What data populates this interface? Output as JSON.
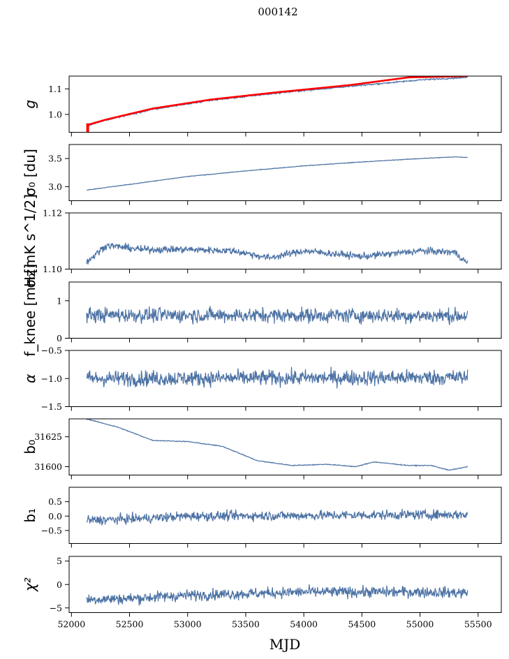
{
  "figure": {
    "title": "000142",
    "xlabel": "MJD"
  },
  "chart_data": {
    "type": "line",
    "xlim": [
      51980,
      55700
    ],
    "xticks": [
      52000,
      52500,
      53000,
      53500,
      54000,
      54500,
      55000,
      55500
    ],
    "x_start": 52130,
    "x_end": 55410,
    "series_color": "#4c72a4",
    "accent_color": "#ff0000",
    "panels": [
      {
        "key": "g",
        "ylabel_text": "g",
        "ylim": [
          0.93,
          1.15
        ],
        "yticks": [
          1.0,
          1.1
        ],
        "yticklabels": [
          "1.0",
          "1.1"
        ],
        "trend": [
          [
            52130,
            0.955
          ],
          [
            52300,
            0.978
          ],
          [
            52700,
            1.02
          ],
          [
            53200,
            1.055
          ],
          [
            53800,
            1.085
          ],
          [
            54400,
            1.11
          ],
          [
            55000,
            1.135
          ],
          [
            55410,
            1.145
          ]
        ],
        "noise": 0.002,
        "red_trend": [
          [
            52130,
            0.958
          ],
          [
            52300,
            0.98
          ],
          [
            52700,
            1.023
          ],
          [
            53200,
            1.058
          ],
          [
            53800,
            1.088
          ],
          [
            54400,
            1.115
          ],
          [
            54900,
            1.145
          ],
          [
            55410,
            1.15
          ]
        ],
        "red_spike": {
          "x": 52140,
          "y0": 0.93,
          "y1": 0.965
        }
      },
      {
        "key": "sigma0_du",
        "ylabel_text": "σ₀ [du]",
        "ylim": [
          2.75,
          3.75
        ],
        "yticks": [
          3.0,
          3.5
        ],
        "yticklabels": [
          "3.0",
          "3.5"
        ],
        "trend": [
          [
            52130,
            2.94
          ],
          [
            52500,
            3.04
          ],
          [
            53000,
            3.18
          ],
          [
            53500,
            3.28
          ],
          [
            54000,
            3.37
          ],
          [
            54500,
            3.44
          ],
          [
            55000,
            3.5
          ],
          [
            55300,
            3.53
          ],
          [
            55410,
            3.52
          ]
        ],
        "noise": 0.004
      },
      {
        "key": "sigma0_mk",
        "ylabel_text": "σ₀[mK s^1/2]",
        "ylim": [
          1.1,
          1.12
        ],
        "yticks": [
          1.1,
          1.12
        ],
        "yticklabels": [
          "1.10",
          "1.12"
        ],
        "trend": [
          [
            52130,
            1.1025
          ],
          [
            52300,
            1.1085
          ],
          [
            52600,
            1.107
          ],
          [
            53000,
            1.107
          ],
          [
            53400,
            1.1065
          ],
          [
            53700,
            1.104
          ],
          [
            54000,
            1.1065
          ],
          [
            54500,
            1.1045
          ],
          [
            55000,
            1.1065
          ],
          [
            55300,
            1.106
          ],
          [
            55410,
            1.102
          ]
        ],
        "noise": 0.0009
      },
      {
        "key": "fknee",
        "ylabel_text": "f_knee [mHz]",
        "ylim": [
          0,
          1.5
        ],
        "yticks": [
          0,
          1
        ],
        "yticklabels": [
          "0",
          "1"
        ],
        "trend": [
          [
            52130,
            0.62
          ],
          [
            55410,
            0.6
          ]
        ],
        "noise": 0.14
      },
      {
        "key": "alpha",
        "ylabel_text": "α",
        "ylim": [
          -1.5,
          -0.5
        ],
        "yticks": [
          -1.5,
          -1.0,
          -0.5
        ],
        "yticklabels": [
          "−1.5",
          "−1.0",
          "−0.5"
        ],
        "trend": [
          [
            52130,
            -1.0
          ],
          [
            55410,
            -0.98
          ]
        ],
        "noise": 0.1
      },
      {
        "key": "b0",
        "ylabel_text": "b₀",
        "ylim": [
          31593,
          31640
        ],
        "yticks": [
          31600,
          31625
        ],
        "yticklabels": [
          "31600",
          "31625"
        ],
        "trend": [
          [
            52130,
            31640
          ],
          [
            52400,
            31633
          ],
          [
            52700,
            31622
          ],
          [
            53000,
            31621
          ],
          [
            53300,
            31617
          ],
          [
            53600,
            31605
          ],
          [
            53900,
            31601
          ],
          [
            54200,
            31602
          ],
          [
            54450,
            31600
          ],
          [
            54600,
            31604
          ],
          [
            54900,
            31601
          ],
          [
            55100,
            31601
          ],
          [
            55250,
            31597
          ],
          [
            55410,
            31600
          ]
        ],
        "noise": 0.25
      },
      {
        "key": "b1",
        "ylabel_text": "b₁",
        "ylim": [
          -0.95,
          1.0
        ],
        "yticks": [
          -0.5,
          0.0,
          0.5
        ],
        "yticklabels": [
          "−0.5",
          "0.0",
          "0.5"
        ],
        "trend": [
          [
            52130,
            -0.15
          ],
          [
            52500,
            -0.1
          ],
          [
            53000,
            0.0
          ],
          [
            54000,
            0.02
          ],
          [
            55000,
            0.05
          ],
          [
            55410,
            0.05
          ]
        ],
        "noise": 0.12
      },
      {
        "key": "chi2",
        "ylabel_text": "χ²",
        "ylim": [
          -6,
          6
        ],
        "yticks": [
          -5,
          0,
          5
        ],
        "yticklabels": [
          "−5",
          "0",
          "5"
        ],
        "trend": [
          [
            52130,
            -3.2
          ],
          [
            52500,
            -3.0
          ],
          [
            53000,
            -2.3
          ],
          [
            54000,
            -1.6
          ],
          [
            55000,
            -1.6
          ],
          [
            55410,
            -1.8
          ]
        ],
        "noise": 0.85
      }
    ]
  }
}
